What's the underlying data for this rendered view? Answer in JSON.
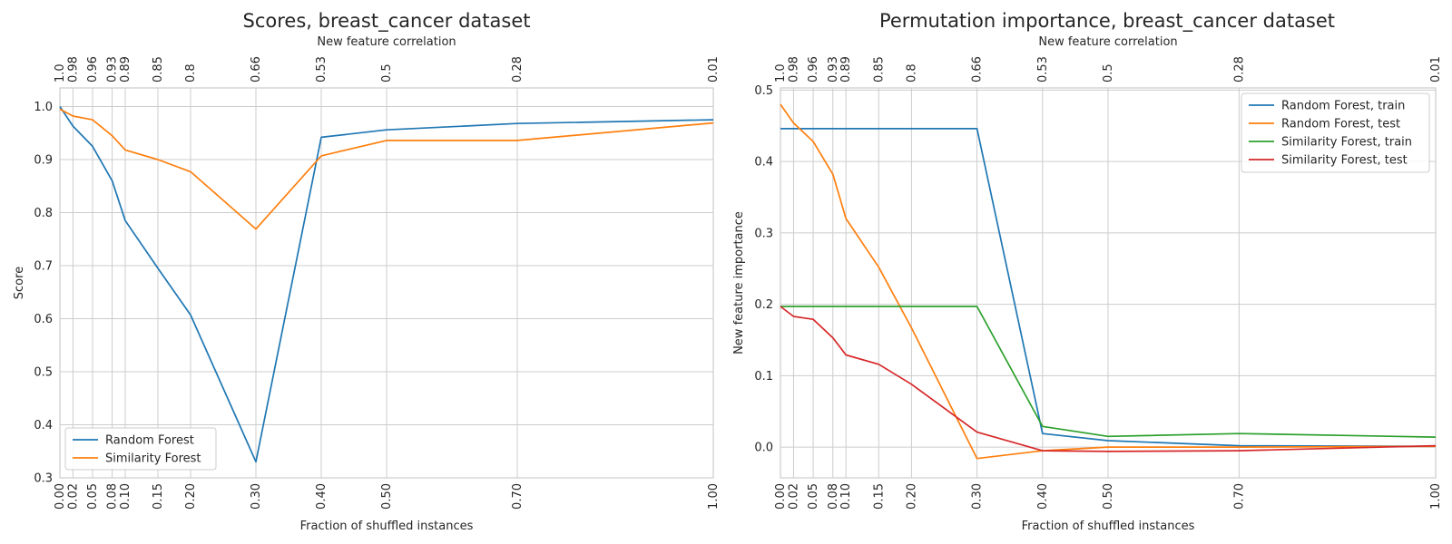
{
  "chart_data": [
    {
      "type": "line",
      "title": "Scores, breast_cancer dataset",
      "xlabel": "Fraction of shuffled instances",
      "ylabel": "Score",
      "top_xlabel": "New feature correlation",
      "x": [
        0.0,
        0.02,
        0.05,
        0.08,
        0.1,
        0.15,
        0.2,
        0.3,
        0.4,
        0.5,
        0.7,
        1.0
      ],
      "x_tick_labels": [
        "0.00",
        "0.02",
        "0.05",
        "0.08",
        "0.10",
        "0.15",
        "0.20",
        "0.30",
        "0.40",
        "0.50",
        "0.70",
        "1.00"
      ],
      "top_tick_labels": [
        "1.0",
        "0.98",
        "0.96",
        "0.93",
        "0.89",
        "0.85",
        "0.8",
        "0.66",
        "0.53",
        "0.5",
        "0.28",
        "0.01"
      ],
      "xlim": [
        0.0,
        1.0
      ],
      "ylim": [
        0.3,
        1.035
      ],
      "y_ticks": [
        0.3,
        0.4,
        0.5,
        0.6,
        0.7,
        0.8,
        0.9,
        1.0
      ],
      "y_tick_labels": [
        "0.3",
        "0.4",
        "0.5",
        "0.6",
        "0.7",
        "0.8",
        "0.9",
        "1.0"
      ],
      "grid": true,
      "legend_position": "lower-left",
      "series": [
        {
          "name": "Random Forest",
          "color": "#1f77b4",
          "values": [
            1.0,
            0.963,
            0.925,
            0.86,
            0.785,
            0.695,
            0.607,
            0.33,
            0.942,
            0.956,
            0.968,
            0.975
          ]
        },
        {
          "name": "Similarity Forest",
          "color": "#ff7f0e",
          "values": [
            0.995,
            0.982,
            0.975,
            0.945,
            0.918,
            0.9,
            0.877,
            0.769,
            0.907,
            0.936,
            0.936,
            0.969
          ]
        }
      ]
    },
    {
      "type": "line",
      "title": "Permutation importance, breast_cancer dataset",
      "xlabel": "Fraction of shuffled instances",
      "ylabel": "New feature importance",
      "top_xlabel": "New feature correlation",
      "x": [
        0.0,
        0.02,
        0.05,
        0.08,
        0.1,
        0.15,
        0.2,
        0.3,
        0.4,
        0.5,
        0.7,
        1.0
      ],
      "x_tick_labels": [
        "0.00",
        "0.02",
        "0.05",
        "0.08",
        "0.10",
        "0.15",
        "0.20",
        "0.30",
        "0.40",
        "0.50",
        "0.70",
        "1.00"
      ],
      "top_tick_labels": [
        "1.0",
        "0.98",
        "0.96",
        "0.93",
        "0.89",
        "0.85",
        "0.8",
        "0.66",
        "0.53",
        "0.5",
        "0.28",
        "0.01"
      ],
      "xlim": [
        0.0,
        1.0
      ],
      "ylim": [
        -0.043,
        0.503
      ],
      "y_ticks": [
        0.0,
        0.1,
        0.2,
        0.3,
        0.4,
        0.5
      ],
      "y_tick_labels": [
        "0.0",
        "0.1",
        "0.2",
        "0.3",
        "0.4",
        "0.5"
      ],
      "grid": true,
      "legend_position": "upper-right",
      "series": [
        {
          "name": "Random Forest, train",
          "color": "#1f77b4",
          "values": [
            0.446,
            0.446,
            0.446,
            0.446,
            0.446,
            0.446,
            0.446,
            0.446,
            0.019,
            0.009,
            0.002,
            0.001
          ]
        },
        {
          "name": "Random Forest, test",
          "color": "#ff7f0e",
          "values": [
            0.48,
            0.454,
            0.428,
            0.382,
            0.32,
            0.252,
            0.167,
            -0.016,
            -0.005,
            0.0,
            0.0,
            0.001
          ]
        },
        {
          "name": "Similarity Forest, train",
          "color": "#2ca02c",
          "values": [
            0.197,
            0.197,
            0.197,
            0.197,
            0.197,
            0.197,
            0.197,
            0.197,
            0.029,
            0.015,
            0.019,
            0.014
          ]
        },
        {
          "name": "Similarity Forest, test",
          "color": "#d62728",
          "values": [
            0.197,
            0.183,
            0.179,
            0.153,
            0.129,
            0.116,
            0.088,
            0.021,
            -0.005,
            -0.006,
            -0.005,
            0.002
          ]
        }
      ]
    }
  ]
}
